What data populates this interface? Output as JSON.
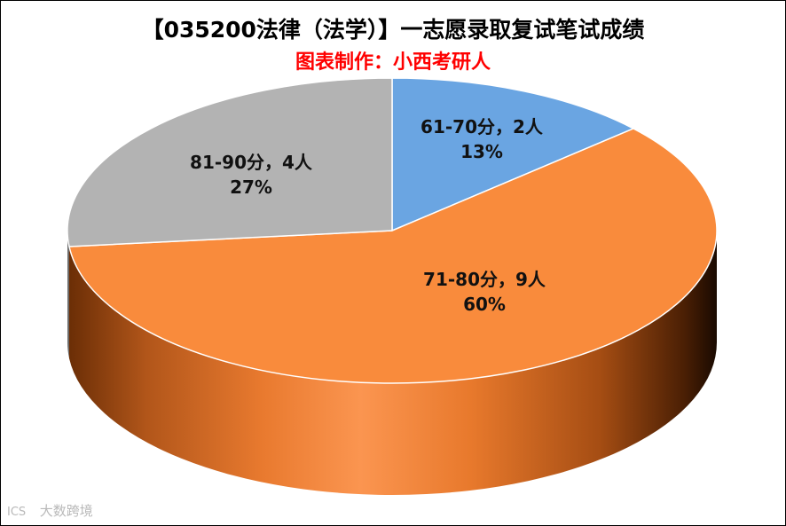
{
  "title": "【035200法律（法学）】一志愿录取复试笔试成绩",
  "subtitle": "图表制作：小西考研人",
  "watermark": {
    "logo": "ICS",
    "text": "大数跨境"
  },
  "chart_data": {
    "type": "pie",
    "style": "3d",
    "title": "【035200法律（法学）】一志愿录取复试笔试成绩",
    "subtitle": "图表制作：小西考研人",
    "slices": [
      {
        "label": "61-70分，2人",
        "value": 2,
        "percent": "13%",
        "color": "#6aa5e2"
      },
      {
        "label": "71-80分，9人",
        "value": 9,
        "percent": "60%",
        "color": "#f98b3c"
      },
      {
        "label": "81-90分，4人",
        "value": 4,
        "percent": "27%",
        "color": "#b3b3b3"
      }
    ],
    "legend": "none"
  }
}
